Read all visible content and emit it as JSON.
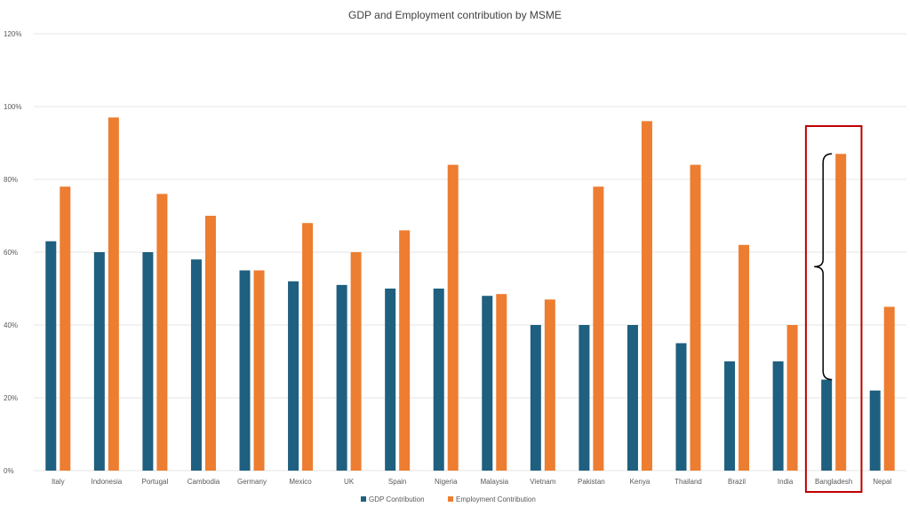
{
  "chart_data": {
    "type": "bar",
    "title": "GDP and Employment contribution by MSME",
    "xlabel": "",
    "ylabel": "",
    "ylim": [
      0,
      120
    ],
    "yticks": [
      "0%",
      "20%",
      "40%",
      "60%",
      "80%",
      "100%",
      "120%"
    ],
    "grid": true,
    "legend_position": "bottom",
    "categories": [
      "Italy",
      "Indonesia",
      "Portugal",
      "Cambodia",
      "Germany",
      "Mexico",
      "UK",
      "Spain",
      "Nigeria",
      "Malaysia",
      "Vietnam",
      "Pakistan",
      "Kenya",
      "Thailand",
      "Brazil",
      "India",
      "Bangladesh",
      "Nepal"
    ],
    "series": [
      {
        "name": "GDP Contribution",
        "color": "#1f5f7f",
        "values": [
          63,
          60,
          60,
          58,
          55,
          52,
          51,
          50,
          50,
          48,
          40,
          40,
          40,
          35,
          30,
          30,
          25,
          22
        ]
      },
      {
        "name": "Employment Contribution",
        "color": "#ed7d31",
        "values": [
          78,
          97,
          76,
          70,
          55,
          68,
          60,
          66,
          84,
          48.5,
          47,
          78,
          96,
          84,
          62,
          40,
          87,
          45
        ]
      }
    ],
    "annotations": [
      {
        "type": "highlight-box",
        "category": "Bangladesh",
        "color": "#c00000"
      },
      {
        "type": "curly-brace",
        "category": "Bangladesh",
        "from": 25,
        "to": 87,
        "color": "#000000"
      }
    ]
  }
}
